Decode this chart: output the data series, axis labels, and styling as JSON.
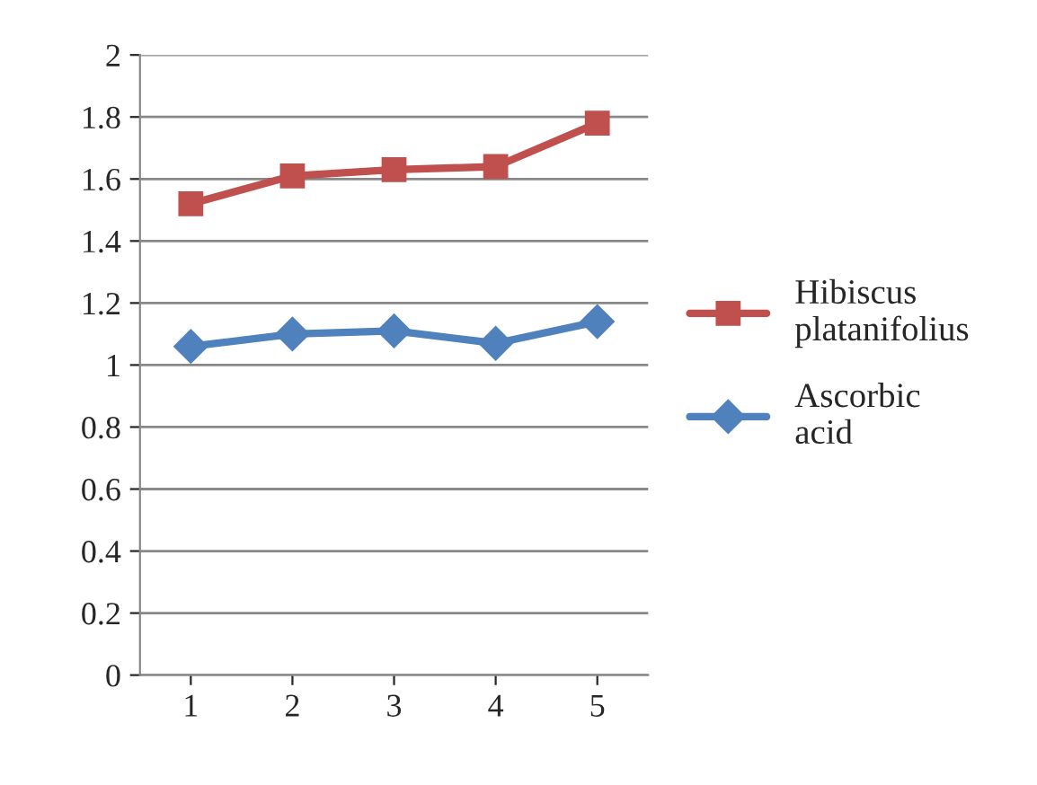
{
  "chart_data": {
    "type": "line",
    "categories": [
      "1",
      "2",
      "3",
      "4",
      "5"
    ],
    "series": [
      {
        "name": "Hibiscus platanifolius",
        "color": "#c0504d",
        "marker": "square",
        "values": [
          1.52,
          1.61,
          1.63,
          1.64,
          1.78
        ]
      },
      {
        "name": "Ascorbic acid",
        "color": "#4f81bd",
        "marker": "diamond",
        "values": [
          1.06,
          1.1,
          1.11,
          1.07,
          1.14
        ]
      }
    ],
    "ylim": [
      0,
      2
    ],
    "yticks": [
      0,
      0.2,
      0.4,
      0.6,
      0.8,
      1,
      1.2,
      1.4,
      1.6,
      1.8,
      2
    ],
    "grid": "y",
    "legend": "right",
    "line_style": "solid"
  }
}
